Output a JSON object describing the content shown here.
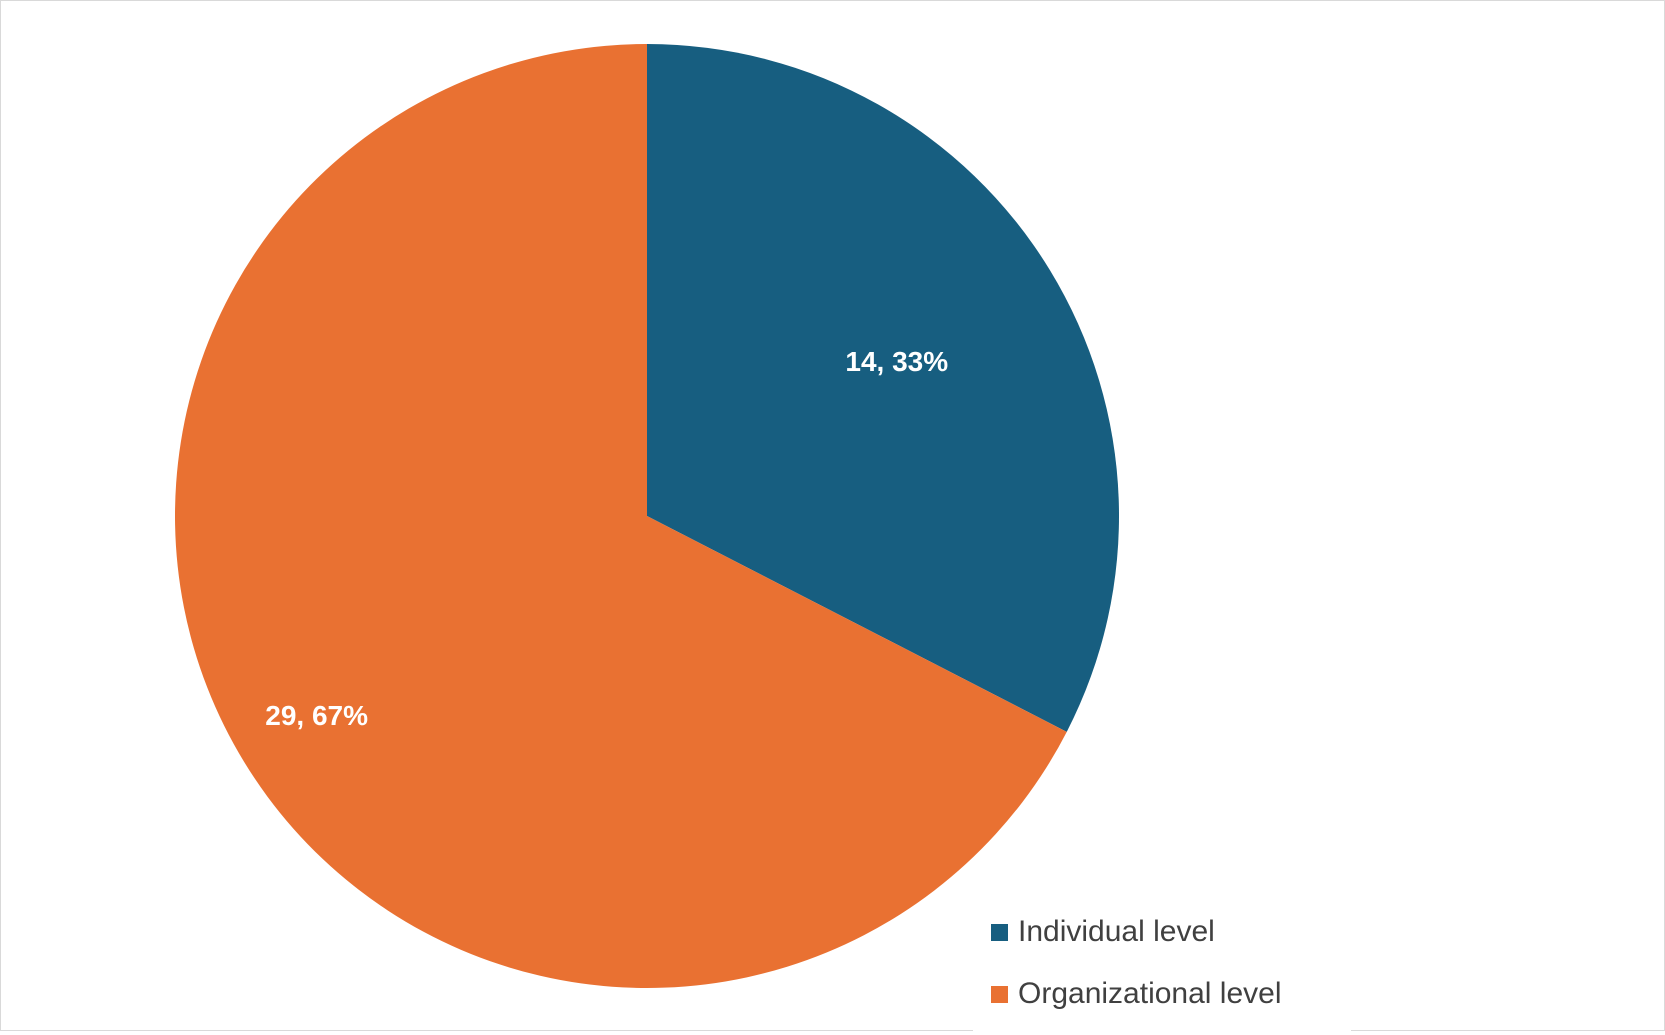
{
  "chart_data": {
    "type": "pie",
    "categories": [
      "Individual level",
      "Organizational level"
    ],
    "values": [
      14,
      29
    ],
    "percentages": [
      33,
      67
    ],
    "data_labels": [
      "14, 33%",
      "29, 67%"
    ],
    "colors": [
      "#175E80",
      "#E97132"
    ],
    "start_angle_deg": 0,
    "direction": "clockwise",
    "legend_position": "bottom-right"
  },
  "legend": {
    "items": [
      {
        "label": "Individual level",
        "color": "#175E80"
      },
      {
        "label": "Organizational level",
        "color": "#E97132"
      }
    ]
  }
}
